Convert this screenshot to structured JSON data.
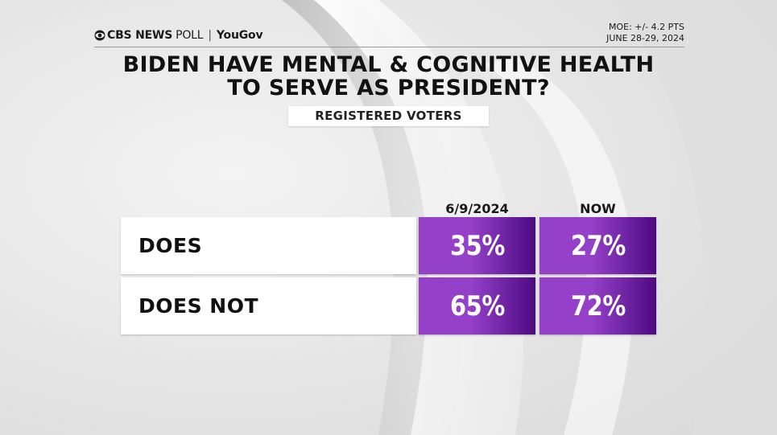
{
  "header": {
    "logo_news": "CBS NEWS",
    "logo_poll": "POLL",
    "logo_sep": "|",
    "logo_yougov": "YouGov",
    "moe": "MOE: +/- 4.2 PTS",
    "dates": "JUNE 28-29, 2024"
  },
  "chart_data": {
    "type": "table",
    "title_line1": "BIDEN HAVE MENTAL & COGNITIVE HEALTH",
    "title_line2": "TO SERVE AS PRESIDENT?",
    "subtitle": "REGISTERED VOTERS",
    "columns": [
      "6/9/2024",
      "NOW"
    ],
    "rows": [
      {
        "label": "DOES",
        "values": [
          "35%",
          "27%"
        ]
      },
      {
        "label": "DOES NOT",
        "values": [
          "65%",
          "72%"
        ]
      }
    ],
    "values_numeric": [
      [
        35,
        27
      ],
      [
        65,
        72
      ]
    ]
  },
  "colors": {
    "purple_light": "#9440c8",
    "purple_dark": "#4e0a82",
    "background": "#e6e6e6"
  }
}
